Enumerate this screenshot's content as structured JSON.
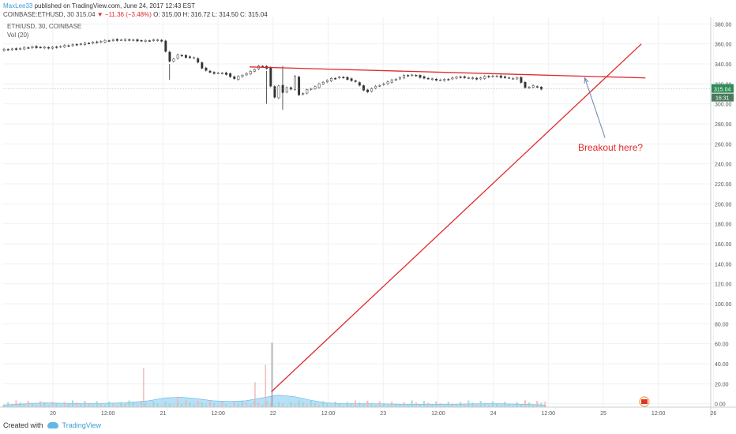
{
  "header": {
    "author": "MaxLee33",
    "published": "published on TradingView.com, June 24, 2017 12:43 EST",
    "symbol": "COINBASE:ETHUSD, 30",
    "last": "315.04",
    "change": "▼ −11.36 (−3.48%)",
    "ohlc": "O: 315.00  H: 316.72  L: 314.50  C: 315.04"
  },
  "legend": {
    "title": "ETH/USD, 30, COINBASE",
    "volume": "Vol (20)"
  },
  "annotation": {
    "text": "Breakout here?"
  },
  "footer": {
    "created": "Created with",
    "brand": "TradingView"
  },
  "colors": {
    "up": "#26a69a",
    "down": "#ef5350",
    "trendline": "#e0292a",
    "arrow": "#6f7fb0",
    "volume_area": "#7ec8f0",
    "price_label": "#2e8b57"
  },
  "chart_data": {
    "type": "candlestick",
    "interval": "30",
    "y_ticks": [
      "380.00",
      "360.00",
      "340.00",
      "320.00",
      "300.00",
      "280.00",
      "260.00",
      "240.00",
      "220.00",
      "200.00",
      "180.00",
      "160.00",
      "140.00",
      "120.00",
      "100.00",
      "80.00",
      "60.00",
      "40.00",
      "20.00",
      "0.00"
    ],
    "ylim": [
      -5,
      385
    ],
    "x_ticks": [
      "20",
      "12:00",
      "21",
      "12:00",
      "22",
      "12:00",
      "23",
      "12:00",
      "24",
      "12:00",
      "25",
      "12:00",
      "26"
    ],
    "price_label": "315.04",
    "time_label": "16:31",
    "price_path": [
      [
        0,
        354
      ],
      [
        2,
        355
      ],
      [
        4,
        357
      ],
      [
        6,
        356
      ],
      [
        8,
        358
      ],
      [
        10,
        360
      ],
      [
        12,
        362
      ],
      [
        14,
        364
      ],
      [
        16,
        364
      ],
      [
        18,
        363
      ],
      [
        19,
        364
      ],
      [
        20,
        363
      ],
      [
        21,
        342
      ],
      [
        22,
        349
      ],
      [
        23,
        347
      ],
      [
        24,
        346
      ],
      [
        25,
        336
      ],
      [
        26,
        331
      ],
      [
        27,
        331
      ],
      [
        28,
        330
      ],
      [
        29,
        325
      ],
      [
        30,
        329
      ],
      [
        31,
        332
      ],
      [
        32,
        338
      ],
      [
        33,
        336
      ],
      [
        33.5,
        318
      ],
      [
        34,
        306
      ],
      [
        34.5,
        318
      ],
      [
        35,
        312
      ],
      [
        35.5,
        316
      ],
      [
        36,
        315
      ],
      [
        36.5,
        327
      ],
      [
        37,
        309
      ],
      [
        37.5,
        311
      ],
      [
        38,
        314
      ],
      [
        39,
        317
      ],
      [
        40,
        322
      ],
      [
        41,
        325
      ],
      [
        42,
        327
      ],
      [
        43,
        325
      ],
      [
        44,
        322
      ],
      [
        45,
        314
      ],
      [
        45.5,
        312
      ],
      [
        46,
        316
      ],
      [
        47,
        319
      ],
      [
        48,
        322
      ],
      [
        49,
        325
      ],
      [
        50,
        328
      ],
      [
        51,
        329
      ],
      [
        52,
        327
      ],
      [
        53,
        325
      ],
      [
        54,
        324
      ],
      [
        55,
        324
      ],
      [
        56,
        326
      ],
      [
        57,
        327
      ],
      [
        58,
        326
      ],
      [
        59,
        325
      ],
      [
        60,
        327
      ],
      [
        61,
        328
      ],
      [
        62,
        327
      ],
      [
        63,
        326
      ],
      [
        63.5,
        325
      ],
      [
        64,
        326
      ],
      [
        64.5,
        322
      ],
      [
        65,
        316
      ],
      [
        66,
        318
      ],
      [
        67,
        315
      ]
    ],
    "wicks": [
      [
        32.6,
        333,
        300
      ],
      [
        34.6,
        338,
        294
      ],
      [
        20.6,
        340,
        324
      ]
    ],
    "volume_spikes": [
      [
        17.3,
        55
      ],
      [
        32.4,
        60
      ],
      [
        31.1,
        35
      ],
      [
        33.2,
        91
      ],
      [
        21.5,
        15
      ],
      [
        45,
        8
      ],
      [
        67,
        8
      ]
    ],
    "volume_area": [
      [
        0,
        3
      ],
      [
        5,
        6
      ],
      [
        10,
        5
      ],
      [
        15,
        6
      ],
      [
        18,
        9
      ],
      [
        20,
        13
      ],
      [
        22,
        14
      ],
      [
        24,
        12
      ],
      [
        26,
        9
      ],
      [
        28,
        8
      ],
      [
        30,
        9
      ],
      [
        32,
        13
      ],
      [
        34,
        17
      ],
      [
        36,
        15
      ],
      [
        38,
        10
      ],
      [
        40,
        6
      ],
      [
        42,
        5
      ],
      [
        45,
        5
      ],
      [
        50,
        4
      ],
      [
        55,
        4
      ],
      [
        60,
        5
      ],
      [
        65,
        4
      ],
      [
        67,
        3
      ]
    ],
    "lines": [
      {
        "x1": 33.2,
        "y1": 12,
        "x2": 79,
        "y2": 360
      },
      {
        "x1": 30.5,
        "y1": 337,
        "x2": 79.5,
        "y2": 326
      }
    ],
    "arrow": {
      "from": [
        74.5,
        266
      ],
      "to": [
        72,
        326
      ]
    }
  }
}
